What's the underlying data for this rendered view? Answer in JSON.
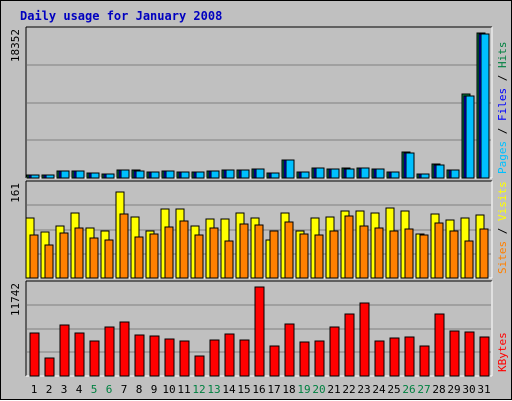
{
  "chart_data": {
    "title": "Daily usage for January 2008",
    "categories": [
      "1",
      "2",
      "3",
      "4",
      "5",
      "6",
      "7",
      "8",
      "9",
      "10",
      "11",
      "12",
      "13",
      "14",
      "15",
      "16",
      "17",
      "18",
      "19",
      "20",
      "21",
      "22",
      "23",
      "24",
      "25",
      "26",
      "27",
      "28",
      "29",
      "30",
      "31"
    ],
    "weekend_days": [
      "5",
      "6",
      "12",
      "13",
      "19",
      "20",
      "26",
      "27"
    ],
    "colors": {
      "title": "#0000c0",
      "weekday_label": "#000000",
      "weekend_label": "#008040",
      "pages": "#00c0ff",
      "files": "#0000ff",
      "hits": "#008040",
      "sites": "#ff8000",
      "visits": "#ffff00",
      "kbytes": "#ff0000",
      "grid": "#808080",
      "plot_bg": "#c0c0c0",
      "frame_bg": "#c0c0c0"
    },
    "panels": [
      {
        "id": "hits",
        "type": "bar",
        "ymax": 18352,
        "ymax_label": "18352",
        "axis_label": [
          {
            "text": "Pages",
            "color": "#00c0ff"
          },
          {
            "text": " / ",
            "color": "#000000"
          },
          {
            "text": "Files",
            "color": "#0000ff"
          },
          {
            "text": " / ",
            "color": "#000000"
          },
          {
            "text": "Hits",
            "color": "#008040"
          }
        ],
        "series": [
          {
            "name": "Hits",
            "color": "#008040",
            "values": [
              430,
              400,
              930,
              930,
              620,
              500,
              1070,
              950,
              820,
              900,
              740,
              820,
              900,
              980,
              980,
              1160,
              630,
              2310,
              820,
              1300,
              1160,
              1210,
              1300,
              1160,
              780,
              3260,
              530,
              1710,
              1060,
              10600,
              18352
            ]
          },
          {
            "name": "Files",
            "color": "#0000ff",
            "values": [
              420,
              380,
              900,
              900,
              600,
              480,
              1040,
              920,
              800,
              870,
              720,
              800,
              870,
              950,
              950,
              1130,
              610,
              2260,
              800,
              1270,
              1130,
              1180,
              1270,
              1130,
              760,
              3210,
              510,
              1670,
              1030,
              10400,
              18200
            ]
          },
          {
            "name": "Pages",
            "color": "#00c0ff",
            "values": [
              420,
              380,
              900,
              900,
              600,
              480,
              1040,
              920,
              800,
              870,
              720,
              800,
              870,
              950,
              950,
              1130,
              610,
              2260,
              800,
              1270,
              1130,
              1180,
              1270,
              1130,
              760,
              3210,
              510,
              1670,
              1030,
              10400,
              18200
            ]
          }
        ]
      },
      {
        "id": "sites",
        "type": "bar",
        "ymax": 161,
        "ymax_label": "161",
        "axis_label": [
          {
            "text": "Sites",
            "color": "#ff8000"
          },
          {
            "text": " / ",
            "color": "#000000"
          },
          {
            "text": "Visits",
            "color": "#ffff00"
          }
        ],
        "series": [
          {
            "name": "Visits",
            "color": "#ffff00",
            "values": [
              106,
              82,
              92,
              115,
              88,
              83,
              152,
              108,
              83,
              122,
              122,
              92,
              105,
              105,
              115,
              107,
              68,
              115,
              84,
              106,
              108,
              118,
              118,
              115,
              123,
              118,
              78,
              114,
              102,
              106,
              112
            ]
          },
          {
            "name": "Sites",
            "color": "#ff8000",
            "values": [
              76,
              58,
              79,
              88,
              70,
              68,
              114,
              72,
              78,
              91,
              100,
              76,
              88,
              66,
              96,
              93,
              84,
              99,
              78,
              76,
              83,
              110,
              92,
              88,
              84,
              86,
              76,
              98,
              84,
              66,
              86
            ]
          }
        ]
      },
      {
        "id": "kbytes",
        "type": "bar",
        "ymax": 11742,
        "ymax_label": "11742",
        "axis_label": [
          {
            "text": "KBytes",
            "color": "#ff0000"
          }
        ],
        "series": [
          {
            "name": "KBytes",
            "color": "#ff0000",
            "values": [
              5710,
              2370,
              6780,
              5640,
              4680,
              6430,
              7140,
              5380,
              5250,
              4870,
              4580,
              2660,
              4740,
              5550,
              4740,
              11742,
              3950,
              6840,
              4450,
              4680,
              6490,
              8220,
              9650,
              4580,
              4950,
              5170,
              3980,
              8170,
              5910,
              5770,
              5190
            ]
          }
        ]
      }
    ]
  }
}
